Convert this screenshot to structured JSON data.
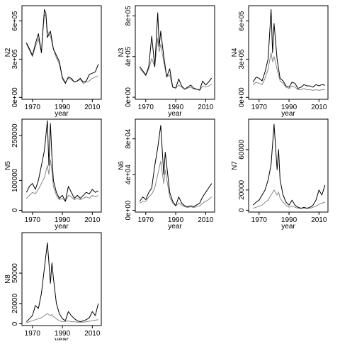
{
  "chart_data": [
    {
      "type": "line",
      "ylabel": "N2",
      "xlabel": "year",
      "xticks": [
        1970,
        1990,
        2010
      ],
      "yticks": [
        0,
        300000,
        600000
      ],
      "ytick_labels": [
        "0e+00",
        "3e+05",
        "6e+05"
      ],
      "xlim": [
        1963,
        2016
      ],
      "ylim": [
        -15000,
        720000
      ],
      "series": [
        {
          "color": "#000000",
          "x": [
            1966,
            1968,
            1970,
            1972,
            1974,
            1976,
            1977,
            1978,
            1979,
            1980,
            1982,
            1984,
            1986,
            1988,
            1990,
            1992,
            1994,
            1996,
            1998,
            2000,
            2002,
            2004,
            2006,
            2008,
            2010,
            2012,
            2014
          ],
          "y": [
            430000,
            380000,
            330000,
            420000,
            500000,
            350000,
            530000,
            690000,
            660000,
            470000,
            520000,
            380000,
            330000,
            280000,
            150000,
            110000,
            160000,
            150000,
            120000,
            130000,
            150000,
            120000,
            130000,
            180000,
            190000,
            200000,
            260000
          ]
        },
        {
          "color": "#888888",
          "x": [
            1966,
            1968,
            1970,
            1972,
            1974,
            1976,
            1977,
            1978,
            1979,
            1980,
            1982,
            1984,
            1986,
            1988,
            1990,
            1992,
            1994,
            1996,
            1998,
            2000,
            2002,
            2004,
            2006,
            2008,
            2010,
            2012,
            2014
          ],
          "y": [
            420000,
            370000,
            320000,
            400000,
            460000,
            360000,
            520000,
            650000,
            640000,
            520000,
            480000,
            380000,
            310000,
            260000,
            160000,
            120000,
            150000,
            140000,
            120000,
            130000,
            140000,
            110000,
            120000,
            130000,
            150000,
            160000,
            170000
          ]
        }
      ]
    },
    {
      "type": "line",
      "ylabel": "N3",
      "xlabel": "year",
      "xticks": [
        1970,
        1990,
        2010
      ],
      "yticks": [
        0,
        400000,
        800000
      ],
      "ytick_labels": [
        "0e+00",
        "4e+05",
        "8e+05"
      ],
      "xlim": [
        1963,
        2016
      ],
      "ylim": [
        -20000,
        900000
      ],
      "series": [
        {
          "color": "#000000",
          "x": [
            1966,
            1968,
            1970,
            1972,
            1974,
            1976,
            1978,
            1979,
            1980,
            1982,
            1984,
            1986,
            1988,
            1990,
            1992,
            1994,
            1996,
            1998,
            2000,
            2002,
            2004,
            2006,
            2008,
            2010,
            2012,
            2014
          ],
          "y": [
            300000,
            260000,
            220000,
            300000,
            600000,
            300000,
            830000,
            500000,
            650000,
            400000,
            200000,
            280000,
            100000,
            90000,
            180000,
            110000,
            80000,
            100000,
            120000,
            90000,
            80000,
            70000,
            160000,
            120000,
            150000,
            190000
          ]
        },
        {
          "color": "#888888",
          "x": [
            1966,
            1968,
            1970,
            1972,
            1974,
            1976,
            1978,
            1979,
            1980,
            1982,
            1984,
            1986,
            1988,
            1990,
            1992,
            1994,
            1996,
            1998,
            2000,
            2002,
            2004,
            2006,
            2008,
            2010,
            2012,
            2014
          ],
          "y": [
            280000,
            250000,
            210000,
            280000,
            380000,
            300000,
            580000,
            450000,
            520000,
            350000,
            200000,
            220000,
            100000,
            90000,
            120000,
            100000,
            80000,
            90000,
            100000,
            80000,
            80000,
            70000,
            110000,
            100000,
            110000,
            130000
          ]
        }
      ]
    },
    {
      "type": "line",
      "ylabel": "N4",
      "xlabel": "year",
      "xticks": [
        1970,
        1990,
        2010
      ],
      "yticks": [
        0,
        300000,
        600000
      ],
      "ytick_labels": [
        "0e+00",
        "3e+05",
        "6e+05"
      ],
      "xlim": [
        1963,
        2016
      ],
      "ylim": [
        -15000,
        720000
      ],
      "series": [
        {
          "color": "#000000",
          "x": [
            1966,
            1968,
            1970,
            1972,
            1974,
            1976,
            1978,
            1979,
            1980,
            1982,
            1984,
            1986,
            1988,
            1990,
            1992,
            1994,
            1996,
            1998,
            2000,
            2002,
            2004,
            2006,
            2008,
            2010,
            2012,
            2014
          ],
          "y": [
            120000,
            160000,
            150000,
            130000,
            200000,
            300000,
            690000,
            350000,
            580000,
            300000,
            150000,
            130000,
            90000,
            80000,
            120000,
            110000,
            70000,
            80000,
            100000,
            90000,
            90000,
            80000,
            100000,
            90000,
            100000,
            95000
          ]
        },
        {
          "color": "#888888",
          "x": [
            1966,
            1968,
            1970,
            1972,
            1974,
            1976,
            1978,
            1979,
            1980,
            1982,
            1984,
            1986,
            1988,
            1990,
            1992,
            1994,
            1996,
            1998,
            2000,
            2002,
            2004,
            2006,
            2008,
            2010,
            2012,
            2014
          ],
          "y": [
            100000,
            120000,
            110000,
            100000,
            150000,
            220000,
            350000,
            280000,
            320000,
            220000,
            130000,
            110000,
            80000,
            70000,
            90000,
            80000,
            60000,
            60000,
            70000,
            60000,
            60000,
            55000,
            60000,
            55000,
            60000,
            60000
          ]
        }
      ]
    },
    {
      "type": "line",
      "ylabel": "N5",
      "xlabel": "year",
      "xticks": [
        1970,
        1990,
        2010
      ],
      "yticks": [
        0,
        100000,
        250000
      ],
      "ytick_labels": [
        "0",
        "100000",
        "250000"
      ],
      "xlim": [
        1963,
        2016
      ],
      "ylim": [
        -6000,
        305000
      ],
      "series": [
        {
          "color": "#000000",
          "x": [
            1966,
            1968,
            1970,
            1972,
            1974,
            1976,
            1978,
            1980,
            1981,
            1982,
            1983,
            1984,
            1986,
            1988,
            1990,
            1992,
            1994,
            1996,
            1998,
            2000,
            2002,
            2004,
            2006,
            2008,
            2010,
            2012,
            2014
          ],
          "y": [
            60000,
            80000,
            90000,
            70000,
            100000,
            150000,
            200000,
            300000,
            150000,
            290000,
            180000,
            100000,
            60000,
            40000,
            50000,
            30000,
            80000,
            60000,
            40000,
            50000,
            40000,
            50000,
            60000,
            55000,
            70000,
            60000,
            65000
          ]
        },
        {
          "color": "#888888",
          "x": [
            1966,
            1968,
            1970,
            1972,
            1974,
            1976,
            1978,
            1980,
            1981,
            1982,
            1983,
            1984,
            1986,
            1988,
            1990,
            1992,
            1994,
            1996,
            1998,
            2000,
            2002,
            2004,
            2006,
            2008,
            2010,
            2012,
            2014
          ],
          "y": [
            40000,
            50000,
            60000,
            55000,
            70000,
            90000,
            110000,
            150000,
            120000,
            170000,
            130000,
            80000,
            50000,
            35000,
            40000,
            30000,
            50000,
            45000,
            35000,
            40000,
            35000,
            40000,
            45000,
            40000,
            50000,
            45000,
            50000
          ]
        }
      ]
    },
    {
      "type": "line",
      "ylabel": "N6",
      "xlabel": "year",
      "xticks": [
        1970,
        1990,
        2010
      ],
      "yticks": [
        0,
        40000,
        80000
      ],
      "ytick_labels": [
        "0e+00",
        "4e+04",
        "8e+04"
      ],
      "xlim": [
        1963,
        2016
      ],
      "ylim": [
        -2000,
        102000
      ],
      "series": [
        {
          "color": "#000000",
          "x": [
            1966,
            1968,
            1970,
            1972,
            1974,
            1976,
            1978,
            1980,
            1982,
            1983,
            1984,
            1986,
            1988,
            1990,
            1992,
            1994,
            1996,
            1998,
            2000,
            2002,
            2004,
            2006,
            2008,
            2010,
            2012,
            2014
          ],
          "y": [
            10000,
            15000,
            12000,
            20000,
            25000,
            50000,
            70000,
            95000,
            40000,
            65000,
            50000,
            20000,
            10000,
            5000,
            15000,
            8000,
            5000,
            4000,
            5000,
            4000,
            6000,
            8000,
            15000,
            20000,
            25000,
            30000
          ]
        },
        {
          "color": "#888888",
          "x": [
            1966,
            1968,
            1970,
            1972,
            1974,
            1976,
            1978,
            1980,
            1982,
            1983,
            1984,
            1986,
            1988,
            1990,
            1992,
            1994,
            1996,
            1998,
            2000,
            2002,
            2004,
            2006,
            2008,
            2010,
            2012,
            2014
          ],
          "y": [
            8000,
            10000,
            10000,
            15000,
            18000,
            25000,
            40000,
            55000,
            30000,
            45000,
            35000,
            15000,
            8000,
            5000,
            8000,
            6000,
            4000,
            3000,
            4000,
            3000,
            4000,
            5000,
            8000,
            10000,
            12000,
            15000
          ]
        }
      ]
    },
    {
      "type": "line",
      "ylabel": "N7",
      "xlabel": "year",
      "xticks": [
        1970,
        1990,
        2010
      ],
      "yticks": [
        0,
        20000,
        60000
      ],
      "ytick_labels": [
        "0",
        "20000",
        "60000"
      ],
      "xlim": [
        1963,
        2016
      ],
      "ylim": [
        -1800,
        90000
      ],
      "series": [
        {
          "color": "#000000",
          "x": [
            1966,
            1968,
            1970,
            1972,
            1974,
            1976,
            1978,
            1980,
            1982,
            1983,
            1984,
            1986,
            1988,
            1990,
            1992,
            1994,
            1996,
            1998,
            2000,
            2002,
            2004,
            2006,
            2008,
            2010,
            2012,
            2014
          ],
          "y": [
            5000,
            8000,
            10000,
            15000,
            20000,
            30000,
            45000,
            85000,
            40000,
            60000,
            30000,
            15000,
            8000,
            5000,
            10000,
            5000,
            3000,
            2000,
            3000,
            2000,
            3000,
            5000,
            10000,
            20000,
            15000,
            25000
          ]
        },
        {
          "color": "#888888",
          "x": [
            1966,
            1968,
            1970,
            1972,
            1974,
            1976,
            1978,
            1980,
            1982,
            1983,
            1984,
            1986,
            1988,
            1990,
            1992,
            1994,
            1996,
            1998,
            2000,
            2002,
            2004,
            2006,
            2008,
            2010,
            2012,
            2014
          ],
          "y": [
            2000,
            3000,
            4000,
            5000,
            8000,
            10000,
            15000,
            20000,
            15000,
            18000,
            12000,
            8000,
            5000,
            3000,
            4000,
            3000,
            2000,
            2000,
            2000,
            2000,
            2000,
            3000,
            4000,
            6000,
            7000,
            8000
          ]
        }
      ]
    },
    {
      "type": "line",
      "ylabel": "N8",
      "xlabel": "year",
      "xticks": [
        1970,
        1990,
        2010
      ],
      "yticks": [
        0,
        20000,
        50000
      ],
      "ytick_labels": [
        "0",
        "20000",
        "50000"
      ],
      "xlim": [
        1963,
        2016
      ],
      "ylim": [
        -1800,
        90000
      ],
      "series": [
        {
          "color": "#000000",
          "x": [
            1966,
            1968,
            1970,
            1972,
            1974,
            1976,
            1978,
            1980,
            1982,
            1983,
            1984,
            1986,
            1988,
            1990,
            1992,
            1994,
            1996,
            1998,
            2000,
            2002,
            2004,
            2006,
            2008,
            2010,
            2012,
            2014
          ],
          "y": [
            2000,
            5000,
            8000,
            18000,
            15000,
            30000,
            55000,
            80000,
            40000,
            60000,
            45000,
            20000,
            10000,
            5000,
            3000,
            12000,
            8000,
            5000,
            3000,
            2000,
            3000,
            4000,
            6000,
            12000,
            8000,
            20000
          ]
        },
        {
          "color": "#888888",
          "x": [
            1966,
            1968,
            1970,
            1972,
            1974,
            1976,
            1978,
            1980,
            1982,
            1983,
            1984,
            1986,
            1988,
            1990,
            1992,
            1994,
            1996,
            1998,
            2000,
            2002,
            2004,
            2006,
            2008,
            2010,
            2012,
            2014
          ],
          "y": [
            1000,
            2000,
            3000,
            4000,
            5000,
            6000,
            8000,
            10000,
            8000,
            9000,
            7000,
            5000,
            3000,
            2000,
            2000,
            3000,
            2000,
            2000,
            1500,
            1500,
            1500,
            2000,
            2500,
            3000,
            3500,
            4000
          ]
        }
      ]
    }
  ]
}
